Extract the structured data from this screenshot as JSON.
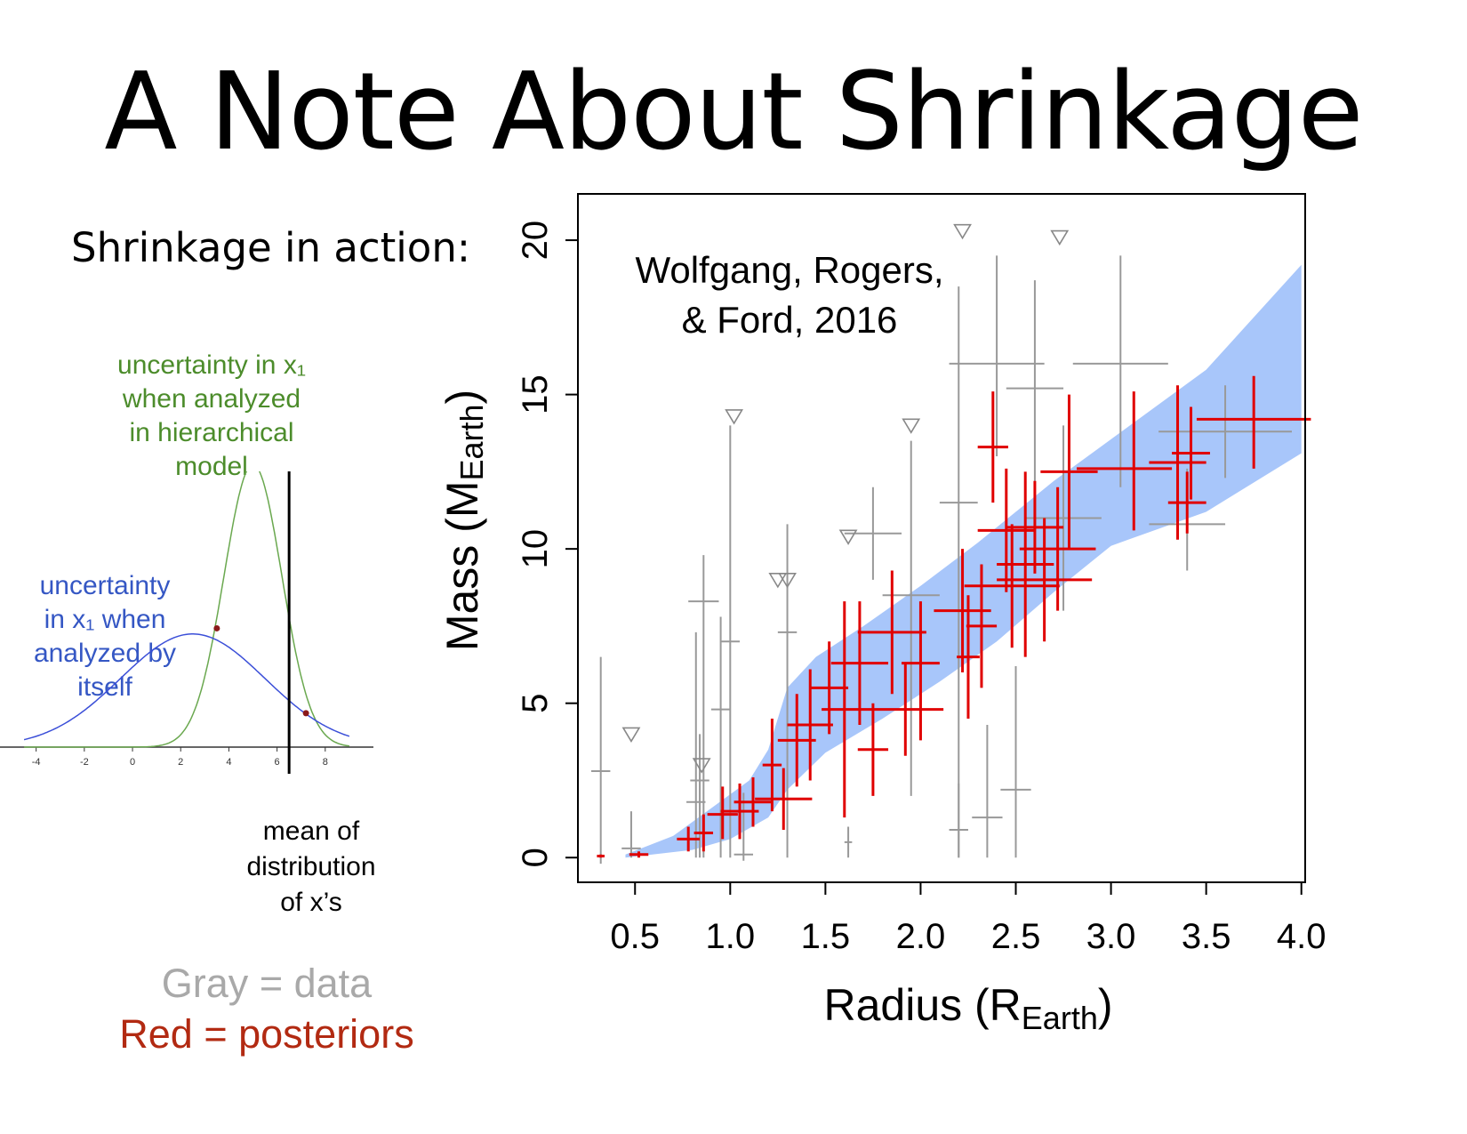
{
  "title": "A Note About Shrinkage",
  "left": {
    "heading": "Shrinkage in action:",
    "green_label": [
      "uncertainty in x₁",
      "when analyzed",
      "in hierarchical",
      "model"
    ],
    "blue_label": [
      "uncertainty",
      "in x₁ when",
      "analyzed by",
      "itself"
    ],
    "mean_label": [
      "mean of",
      "distribution",
      "of x’s"
    ],
    "legend_gray": "Gray = data",
    "legend_red": "Red = posteriors",
    "colors": {
      "green": "#6aa84f",
      "blue": "#3b4fd8",
      "black": "#000000",
      "point": "#8b1a1a"
    }
  },
  "chart_data": [
    {
      "type": "line",
      "x_ticks": [
        "-4",
        "-2",
        "0",
        "2",
        "4",
        "6",
        "8"
      ],
      "xlim": [
        -5.5,
        10
      ],
      "series": [
        {
          "color": "#6aa84f",
          "mean": 5,
          "sd": 1.2,
          "peak": 1.0
        },
        {
          "color": "#3b4fd8",
          "mean": 2.5,
          "sd": 3.0,
          "peak": 0.4
        }
      ],
      "vline": 6.5,
      "points": [
        {
          "x": 3.5,
          "y": 0.42
        },
        {
          "x": 7.2,
          "y": 0.12
        }
      ]
    },
    {
      "type": "scatter",
      "annotation": [
        "Wolfgang, Rogers,",
        "& Ford, 2016"
      ],
      "xlabel": "Radius (R",
      "xlabel_sub": "Earth",
      "ylabel": "Mass (M",
      "ylabel_sub": "Earth",
      "xlim": [
        0.2,
        4.02
      ],
      "ylim": [
        -0.8,
        21.5
      ],
      "x_ticks": [
        "0.5",
        "1.0",
        "1.5",
        "2.0",
        "2.5",
        "3.0",
        "3.5",
        "4.0"
      ],
      "y_ticks": [
        "0",
        "5",
        "10",
        "15",
        "20"
      ],
      "colors": {
        "data": "#999999",
        "posterior": "#e00000",
        "band": "#a8c6fa"
      },
      "band_upper": [
        [
          0.45,
          0.1
        ],
        [
          0.7,
          0.7
        ],
        [
          0.9,
          1.6
        ],
        [
          1.1,
          2.5
        ],
        [
          1.2,
          3.5
        ],
        [
          1.3,
          5.5
        ],
        [
          1.45,
          6.5
        ],
        [
          1.7,
          7.5
        ],
        [
          2.0,
          8.8
        ],
        [
          2.3,
          10.2
        ],
        [
          2.7,
          12.2
        ],
        [
          3.1,
          14.0
        ],
        [
          3.5,
          15.8
        ],
        [
          4.0,
          19.2
        ]
      ],
      "band_lower": [
        [
          4.0,
          13.1
        ],
        [
          3.5,
          11.2
        ],
        [
          3.0,
          10.1
        ],
        [
          2.7,
          8.6
        ],
        [
          2.4,
          7.0
        ],
        [
          2.1,
          5.7
        ],
        [
          1.8,
          4.5
        ],
        [
          1.5,
          3.4
        ],
        [
          1.3,
          2.2
        ],
        [
          1.2,
          1.3
        ],
        [
          1.0,
          0.6
        ],
        [
          0.8,
          0.25
        ],
        [
          0.45,
          0.0
        ]
      ],
      "gray_points": [
        {
          "x": 0.32,
          "y": 2.8,
          "xl": 0.05,
          "xh": 0.05,
          "yl": 3.0,
          "yh": 3.7
        },
        {
          "x": 0.48,
          "y": 0.3,
          "xl": 0.05,
          "xh": 0.05,
          "yl": 0.3,
          "yh": 1.2
        },
        {
          "x": 0.82,
          "y": 1.8,
          "xl": 0.05,
          "xh": 0.05,
          "yl": 1.8,
          "yh": 5.5
        },
        {
          "x": 0.86,
          "y": 8.3,
          "xl": 0.08,
          "xh": 0.08,
          "yl": 8.3,
          "yh": 1.5
        },
        {
          "x": 0.84,
          "y": 2.5,
          "xl": 0.05,
          "xh": 0.05,
          "yl": 2.5,
          "yh": 1.5
        },
        {
          "x": 0.95,
          "y": 4.8,
          "xl": 0.05,
          "xh": 0.05,
          "yl": 4.8,
          "yh": 3.0
        },
        {
          "x": 1.0,
          "y": 7.0,
          "xl": 0.05,
          "xh": 0.05,
          "yl": 7.0,
          "yh": 7.0
        },
        {
          "x": 1.07,
          "y": 0.1,
          "xl": 0.05,
          "xh": 0.05,
          "yl": 0.2,
          "yh": 2.0
        },
        {
          "x": 1.3,
          "y": 7.3,
          "xl": 0.05,
          "xh": 0.05,
          "yl": 7.3,
          "yh": 3.5
        },
        {
          "x": 1.62,
          "y": 0.5,
          "xl": 0.02,
          "xh": 0.02,
          "yl": 0.5,
          "yh": 0.5
        },
        {
          "x": 1.75,
          "y": 10.5,
          "xl": 0.15,
          "xh": 0.15,
          "yl": 1.5,
          "yh": 1.5
        },
        {
          "x": 1.95,
          "y": 8.5,
          "xl": 0.15,
          "xh": 0.15,
          "yl": 6.5,
          "yh": 5.0
        },
        {
          "x": 2.2,
          "y": 0.9,
          "xl": 0.05,
          "xh": 0.05,
          "yl": 0.9,
          "yh": 1.5
        },
        {
          "x": 2.2,
          "y": 11.5,
          "xl": 0.1,
          "xh": 0.1,
          "yl": 11.5,
          "yh": 7.0
        },
        {
          "x": 2.35,
          "y": 1.3,
          "xl": 0.08,
          "xh": 0.08,
          "yl": 1.3,
          "yh": 3.0
        },
        {
          "x": 2.4,
          "y": 16.0,
          "xl": 0.25,
          "xh": 0.25,
          "yl": 3.0,
          "yh": 3.5
        },
        {
          "x": 2.5,
          "y": 2.2,
          "xl": 0.08,
          "xh": 0.08,
          "yl": 2.2,
          "yh": 4.0
        },
        {
          "x": 2.6,
          "y": 15.2,
          "xl": 0.15,
          "xh": 0.15,
          "yl": 5.0,
          "yh": 3.5
        },
        {
          "x": 2.75,
          "y": 11.0,
          "xl": 0.2,
          "xh": 0.2,
          "yl": 3.0,
          "yh": 3.0
        },
        {
          "x": 3.05,
          "y": 16.0,
          "xl": 0.25,
          "xh": 0.25,
          "yl": 4.0,
          "yh": 3.5
        },
        {
          "x": 3.4,
          "y": 10.8,
          "xl": 0.2,
          "xh": 0.2,
          "yl": 1.5,
          "yh": 1.8
        },
        {
          "x": 3.6,
          "y": 13.8,
          "xl": 0.35,
          "xh": 0.35,
          "yl": 1.5,
          "yh": 1.5
        }
      ],
      "red_points": [
        {
          "x": 0.32,
          "y": 0.05,
          "xl": 0.02,
          "xh": 0.02,
          "yl": 0.05,
          "yh": 0.05
        },
        {
          "x": 0.52,
          "y": 0.1,
          "xl": 0.05,
          "xh": 0.05,
          "yl": 0.1,
          "yh": 0.1
        },
        {
          "x": 0.78,
          "y": 0.6,
          "xl": 0.06,
          "xh": 0.06,
          "yl": 0.4,
          "yh": 0.4
        },
        {
          "x": 0.86,
          "y": 0.8,
          "xl": 0.05,
          "xh": 0.05,
          "yl": 0.6,
          "yh": 0.6
        },
        {
          "x": 0.96,
          "y": 1.4,
          "xl": 0.08,
          "xh": 0.08,
          "yl": 0.8,
          "yh": 0.9
        },
        {
          "x": 1.05,
          "y": 1.5,
          "xl": 0.1,
          "xh": 0.1,
          "yl": 0.9,
          "yh": 0.9
        },
        {
          "x": 1.12,
          "y": 1.8,
          "xl": 0.1,
          "xh": 0.1,
          "yl": 0.8,
          "yh": 0.8
        },
        {
          "x": 1.22,
          "y": 3.0,
          "xl": 0.05,
          "xh": 0.05,
          "yl": 1.5,
          "yh": 1.5
        },
        {
          "x": 1.28,
          "y": 1.9,
          "xl": 0.15,
          "xh": 0.15,
          "yl": 1.0,
          "yh": 1.0
        },
        {
          "x": 1.35,
          "y": 3.8,
          "xl": 0.1,
          "xh": 0.1,
          "yl": 1.5,
          "yh": 1.5
        },
        {
          "x": 1.42,
          "y": 4.3,
          "xl": 0.12,
          "xh": 0.12,
          "yl": 1.8,
          "yh": 1.8
        },
        {
          "x": 1.52,
          "y": 5.5,
          "xl": 0.1,
          "xh": 0.1,
          "yl": 1.5,
          "yh": 1.5
        },
        {
          "x": 1.6,
          "y": 4.8,
          "xl": 0.12,
          "xh": 0.12,
          "yl": 3.5,
          "yh": 3.5
        },
        {
          "x": 1.68,
          "y": 6.3,
          "xl": 0.15,
          "xh": 0.15,
          "yl": 2.0,
          "yh": 2.0
        },
        {
          "x": 1.75,
          "y": 3.5,
          "xl": 0.08,
          "xh": 0.08,
          "yl": 1.5,
          "yh": 1.5
        },
        {
          "x": 1.85,
          "y": 7.3,
          "xl": 0.18,
          "xh": 0.18,
          "yl": 2.0,
          "yh": 2.0
        },
        {
          "x": 1.92,
          "y": 4.8,
          "xl": 0.2,
          "xh": 0.2,
          "yl": 1.5,
          "yh": 1.5
        },
        {
          "x": 2.0,
          "y": 6.3,
          "xl": 0.1,
          "xh": 0.1,
          "yl": 2.5,
          "yh": 2.0
        },
        {
          "x": 2.22,
          "y": 8.0,
          "xl": 0.15,
          "xh": 0.15,
          "yl": 2.0,
          "yh": 2.0
        },
        {
          "x": 2.25,
          "y": 6.5,
          "xl": 0.06,
          "xh": 0.06,
          "yl": 2.0,
          "yh": 2.0
        },
        {
          "x": 2.32,
          "y": 7.5,
          "xl": 0.08,
          "xh": 0.08,
          "yl": 2.0,
          "yh": 2.0
        },
        {
          "x": 2.38,
          "y": 13.3,
          "xl": 0.08,
          "xh": 0.08,
          "yl": 1.8,
          "yh": 1.8
        },
        {
          "x": 2.45,
          "y": 10.6,
          "xl": 0.15,
          "xh": 0.15,
          "yl": 2.0,
          "yh": 2.0
        },
        {
          "x": 2.48,
          "y": 8.8,
          "xl": 0.25,
          "xh": 0.25,
          "yl": 2.0,
          "yh": 2.0
        },
        {
          "x": 2.55,
          "y": 9.5,
          "xl": 0.15,
          "xh": 0.15,
          "yl": 3.0,
          "yh": 3.0
        },
        {
          "x": 2.6,
          "y": 10.7,
          "xl": 0.15,
          "xh": 0.15,
          "yl": 1.5,
          "yh": 1.5
        },
        {
          "x": 2.65,
          "y": 9.0,
          "xl": 0.25,
          "xh": 0.25,
          "yl": 2.0,
          "yh": 2.0
        },
        {
          "x": 2.72,
          "y": 10.0,
          "xl": 0.2,
          "xh": 0.2,
          "yl": 2.0,
          "yh": 2.0
        },
        {
          "x": 2.78,
          "y": 12.5,
          "xl": 0.15,
          "xh": 0.15,
          "yl": 2.5,
          "yh": 2.5
        },
        {
          "x": 3.12,
          "y": 12.6,
          "xl": 0.3,
          "xh": 0.2,
          "yl": 2.0,
          "yh": 2.5
        },
        {
          "x": 3.35,
          "y": 12.8,
          "xl": 0.15,
          "xh": 0.15,
          "yl": 2.5,
          "yh": 2.5
        },
        {
          "x": 3.4,
          "y": 11.5,
          "xl": 0.1,
          "xh": 0.1,
          "yl": 1.0,
          "yh": 1.0
        },
        {
          "x": 3.42,
          "y": 13.1,
          "xl": 0.1,
          "xh": 0.1,
          "yl": 1.5,
          "yh": 1.5
        },
        {
          "x": 3.75,
          "y": 14.2,
          "xl": 0.3,
          "xh": 0.3,
          "yl": 1.6,
          "yh": 1.4
        }
      ],
      "upper_limits": [
        {
          "x": 0.48,
          "y": 4.0
        },
        {
          "x": 0.85,
          "y": 3.0
        },
        {
          "x": 1.02,
          "y": 14.3
        },
        {
          "x": 1.25,
          "y": 9.0
        },
        {
          "x": 1.3,
          "y": 9.0
        },
        {
          "x": 1.62,
          "y": 10.4
        },
        {
          "x": 1.95,
          "y": 14.0
        },
        {
          "x": 2.22,
          "y": 20.3
        },
        {
          "x": 2.73,
          "y": 20.1
        }
      ]
    }
  ]
}
